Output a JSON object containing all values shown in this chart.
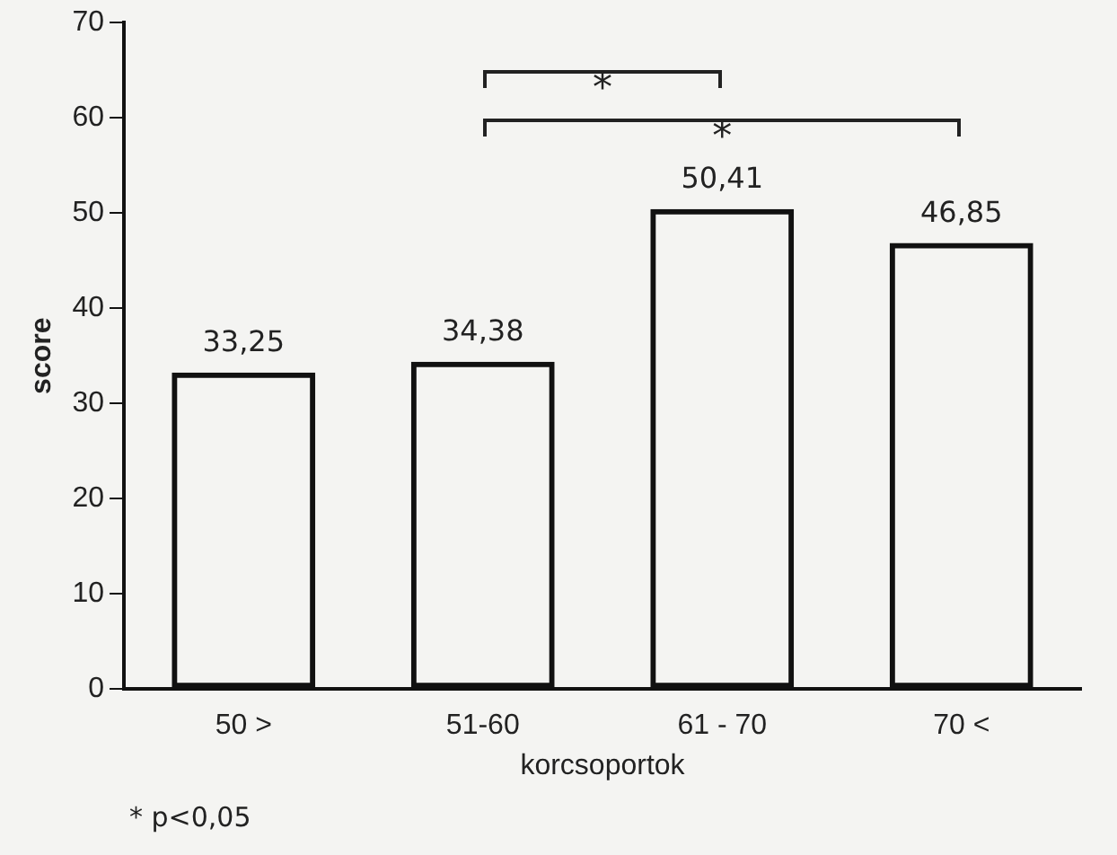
{
  "chart_data": {
    "type": "bar",
    "xlabel": "korcsoportok",
    "ylabel": "score",
    "categories": [
      "50 >",
      "51-60",
      "61 - 70",
      "70 <"
    ],
    "values": [
      33.25,
      34.38,
      50.41,
      46.85
    ],
    "value_labels": [
      "33,25",
      "34,38",
      "50,41",
      "46,85"
    ],
    "color": "#111111",
    "ylim": [
      0,
      70
    ],
    "yticks": [
      0,
      10,
      20,
      30,
      40,
      50,
      60,
      70
    ],
    "grid": false,
    "annotations": [
      "*",
      "*",
      "* p<0,05"
    ]
  }
}
